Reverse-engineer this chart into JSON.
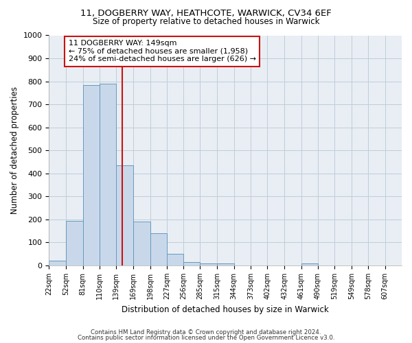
{
  "title1": "11, DOGBERRY WAY, HEATHCOTE, WARWICK, CV34 6EF",
  "title2": "Size of property relative to detached houses in Warwick",
  "xlabel": "Distribution of detached houses by size in Warwick",
  "ylabel": "Number of detached properties",
  "bin_labels": [
    "22sqm",
    "52sqm",
    "81sqm",
    "110sqm",
    "139sqm",
    "169sqm",
    "198sqm",
    "227sqm",
    "256sqm",
    "285sqm",
    "315sqm",
    "344sqm",
    "373sqm",
    "402sqm",
    "432sqm",
    "461sqm",
    "490sqm",
    "519sqm",
    "549sqm",
    "578sqm",
    "607sqm"
  ],
  "bin_edges": [
    22,
    52,
    81,
    110,
    139,
    169,
    198,
    227,
    256,
    285,
    315,
    344,
    373,
    402,
    432,
    461,
    490,
    519,
    549,
    578,
    607,
    636
  ],
  "bar_heights": [
    20,
    195,
    785,
    790,
    435,
    190,
    140,
    50,
    15,
    10,
    10,
    0,
    0,
    0,
    0,
    10,
    0,
    0,
    0,
    0,
    0
  ],
  "bar_color": "#c8d8ea",
  "bar_edge_color": "#6699bb",
  "property_size": 149,
  "vline_color": "#cc1111",
  "annotation_text": "11 DOGBERRY WAY: 149sqm\n← 75% of detached houses are smaller (1,958)\n24% of semi-detached houses are larger (626) →",
  "annotation_box_color": "#ffffff",
  "annotation_box_edge": "#cc1111",
  "ylim": [
    0,
    1000
  ],
  "xlim_left": 22,
  "xlim_right": 636,
  "background_color": "#e8eef4",
  "grid_color": "#c0ccd8",
  "footer_text1": "Contains HM Land Registry data © Crown copyright and database right 2024.",
  "footer_text2": "Contains public sector information licensed under the Open Government Licence v3.0."
}
